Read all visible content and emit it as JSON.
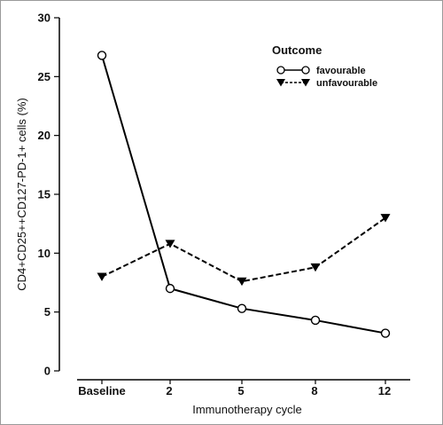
{
  "chart_data": {
    "type": "line",
    "categories": [
      "Baseline",
      "2",
      "5",
      "8",
      "12"
    ],
    "xlabel": "Immunotherapy cycle",
    "ylabel": "CD4+CD25++CD127-PD-1+ cells (%)",
    "ylim": [
      0,
      30
    ],
    "yticks": [
      0,
      5,
      10,
      15,
      20,
      25,
      30
    ],
    "grid": false,
    "legend": {
      "title": "Outcome",
      "placement": "top-right"
    },
    "series": [
      {
        "name": "favourable",
        "values": [
          26.8,
          7.0,
          5.3,
          4.3,
          3.2
        ],
        "style": "solid",
        "marker": "open-circle",
        "color": "#000000"
      },
      {
        "name": "unfavourable",
        "values": [
          8.0,
          10.8,
          7.6,
          8.8,
          13.0
        ],
        "style": "dashed",
        "marker": "filled-down-triangle",
        "color": "#000000"
      }
    ]
  }
}
